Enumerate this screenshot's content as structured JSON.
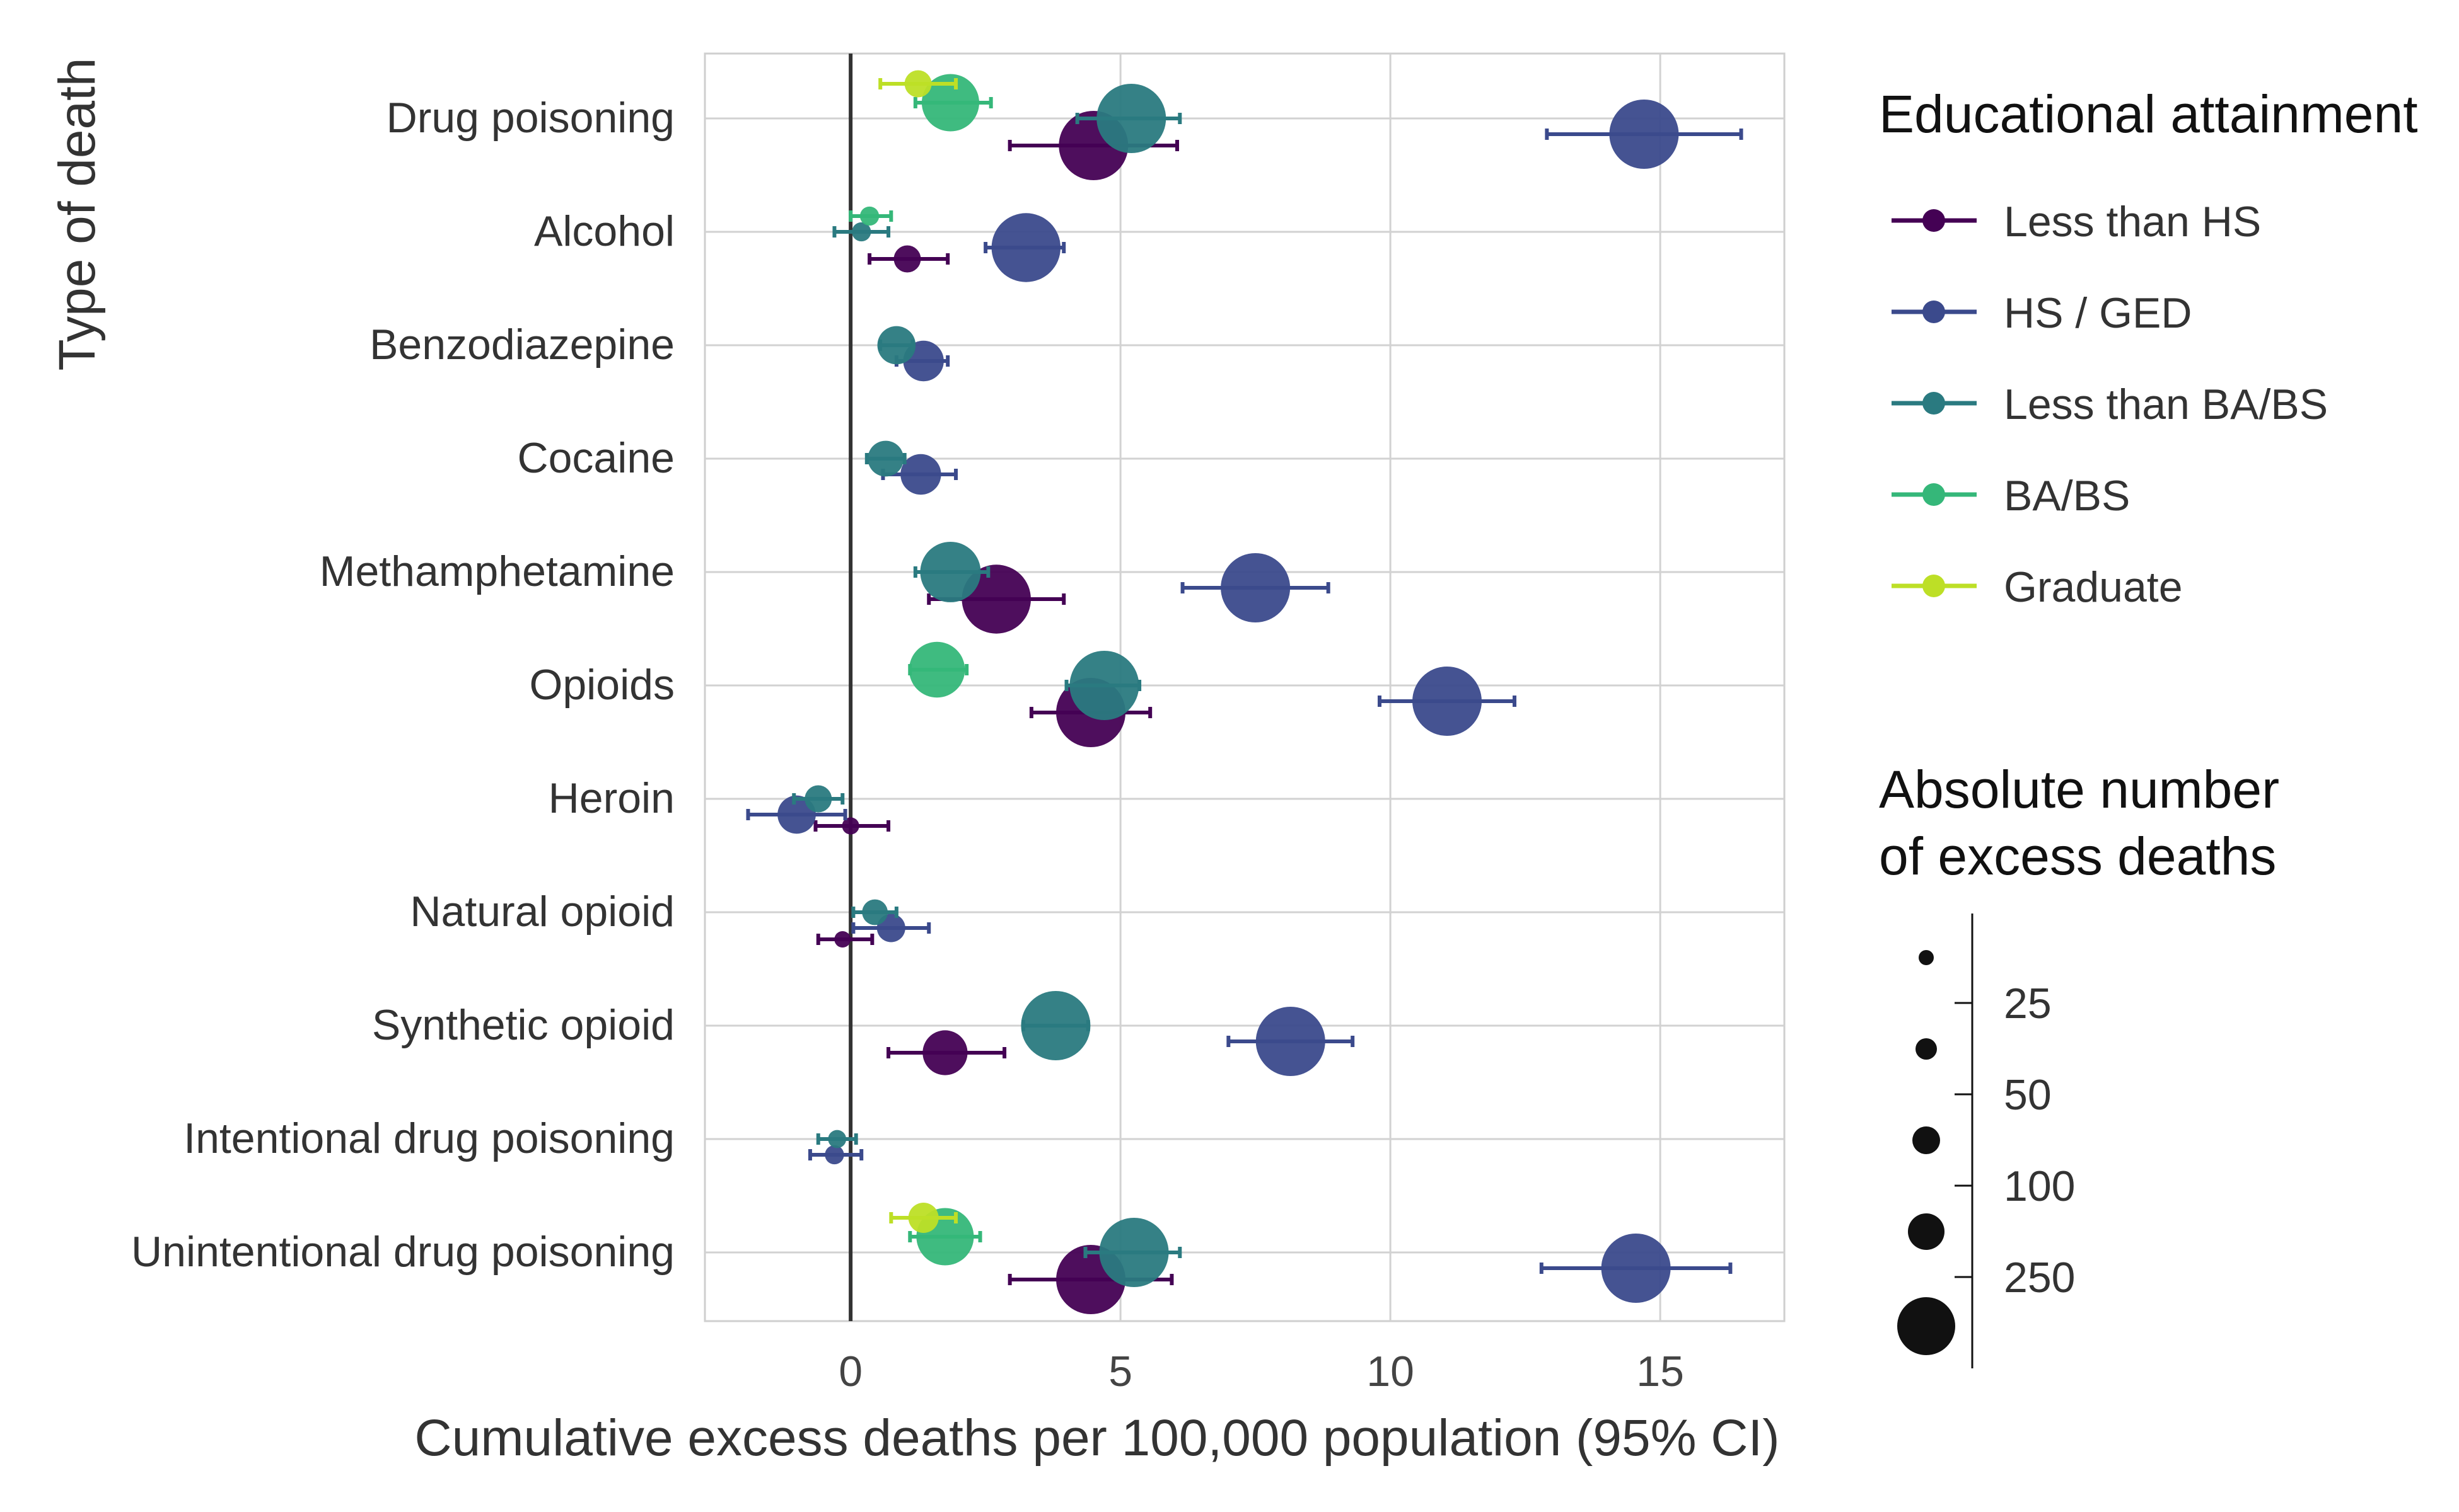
{
  "chart_data": {
    "type": "scatter",
    "title": "",
    "xlabel": "Cumulative excess deaths per 100,000 population (95% CI)",
    "ylabel": "Type of death",
    "xlim": [
      -2.7,
      17.3
    ],
    "xticks": [
      0,
      5,
      10,
      15
    ],
    "x_tick_labels": [
      "0",
      "5",
      "10",
      "15"
    ],
    "grid": true,
    "reference_line_x": 0,
    "categories": [
      "Drug poisoning",
      "Alcohol",
      "Benzodiazepine",
      "Cocaine",
      "Methamphetamine",
      "Opioids",
      "Heroin",
      "Natural opioid",
      "Synthetic opioid",
      "Intentional drug poisoning",
      "Unintentional drug poisoning"
    ],
    "legend": {
      "title": "Educational attainment",
      "placement": "right"
    },
    "size_legend": {
      "title_lines": [
        "Absolute number",
        "of excess deaths"
      ],
      "tick_labels": [
        "25",
        "50",
        "100",
        "250"
      ],
      "marker_labels": [
        "",
        "",
        "",
        "",
        ""
      ]
    },
    "series": [
      {
        "name": "Less than HS",
        "color": "#440154",
        "points": [
          {
            "category": "Drug poisoning",
            "x": 4.5,
            "low": 2.95,
            "high": 6.05,
            "n": 200
          },
          {
            "category": "Alcohol",
            "x": 1.05,
            "low": 0.35,
            "high": 1.8,
            "n": 20
          },
          {
            "category": "Methamphetamine",
            "x": 2.7,
            "low": 1.45,
            "high": 3.95,
            "n": 130
          },
          {
            "category": "Opioids",
            "x": 4.45,
            "low": 3.35,
            "high": 5.55,
            "n": 190
          },
          {
            "category": "Heroin",
            "x": 0.0,
            "low": -0.65,
            "high": 0.7,
            "n": 8
          },
          {
            "category": "Natural opioid",
            "x": -0.15,
            "low": -0.6,
            "high": 0.4,
            "n": 7
          },
          {
            "category": "Synthetic opioid",
            "x": 1.75,
            "low": 0.7,
            "high": 2.85,
            "n": 55
          },
          {
            "category": "Unintentional drug poisoning",
            "x": 4.45,
            "low": 2.95,
            "high": 5.95,
            "n": 195
          }
        ]
      },
      {
        "name": "HS / GED",
        "color": "#3b4a8c",
        "points": [
          {
            "category": "Drug poisoning",
            "x": 14.7,
            "low": 12.9,
            "high": 16.5,
            "n": 1000
          },
          {
            "category": "Alcohol",
            "x": 3.25,
            "low": 2.5,
            "high": 3.95,
            "n": 130
          },
          {
            "category": "Benzodiazepine",
            "x": 1.35,
            "low": 0.85,
            "high": 1.8,
            "n": 45
          },
          {
            "category": "Cocaine",
            "x": 1.3,
            "low": 0.6,
            "high": 1.95,
            "n": 45
          },
          {
            "category": "Methamphetamine",
            "x": 7.5,
            "low": 6.15,
            "high": 8.85,
            "n": 900
          },
          {
            "category": "Opioids",
            "x": 11.05,
            "low": 9.8,
            "high": 12.3,
            "n": 900
          },
          {
            "category": "Heroin",
            "x": -1.0,
            "low": -1.9,
            "high": -0.1,
            "n": 40
          },
          {
            "category": "Natural opioid",
            "x": 0.75,
            "low": 0.05,
            "high": 1.45,
            "n": 22
          },
          {
            "category": "Synthetic opioid",
            "x": 8.15,
            "low": 7.0,
            "high": 9.3,
            "n": 900
          },
          {
            "category": "Intentional drug poisoning",
            "x": -0.3,
            "low": -0.75,
            "high": 0.2,
            "n": 10
          },
          {
            "category": "Unintentional drug poisoning",
            "x": 14.55,
            "low": 12.8,
            "high": 16.3,
            "n": 1000
          }
        ]
      },
      {
        "name": "Less than BA/BS",
        "color": "#2a7a80",
        "points": [
          {
            "category": "Drug poisoning",
            "x": 5.2,
            "low": 4.2,
            "high": 6.1,
            "n": 1000
          },
          {
            "category": "Alcohol",
            "x": 0.2,
            "low": -0.3,
            "high": 0.7,
            "n": 10
          },
          {
            "category": "Benzodiazepine",
            "x": 0.85,
            "low": 0.55,
            "high": 1.15,
            "n": 40
          },
          {
            "category": "Cocaine",
            "x": 0.65,
            "low": 0.3,
            "high": 1.0,
            "n": 35
          },
          {
            "category": "Methamphetamine",
            "x": 1.85,
            "low": 1.2,
            "high": 2.55,
            "n": 100
          },
          {
            "category": "Opioids",
            "x": 4.7,
            "low": 4.0,
            "high": 5.35,
            "n": 1000
          },
          {
            "category": "Heroin",
            "x": -0.6,
            "low": -1.05,
            "high": -0.15,
            "n": 20
          },
          {
            "category": "Natural opioid",
            "x": 0.45,
            "low": 0.05,
            "high": 0.85,
            "n": 18
          },
          {
            "category": "Synthetic opioid",
            "x": 3.8,
            "low": 3.2,
            "high": 4.4,
            "n": 1000
          },
          {
            "category": "Intentional drug poisoning",
            "x": -0.25,
            "low": -0.6,
            "high": 0.1,
            "n": 9
          },
          {
            "category": "Unintentional drug poisoning",
            "x": 5.25,
            "low": 4.35,
            "high": 6.1,
            "n": 1000
          }
        ]
      },
      {
        "name": "BA/BS",
        "color": "#35b779",
        "points": [
          {
            "category": "Drug poisoning",
            "x": 1.85,
            "low": 1.2,
            "high": 2.6,
            "n": 90
          },
          {
            "category": "Alcohol",
            "x": 0.35,
            "low": 0.0,
            "high": 0.75,
            "n": 10
          },
          {
            "category": "Opioids",
            "x": 1.6,
            "low": 1.1,
            "high": 2.15,
            "n": 85
          },
          {
            "category": "Unintentional drug poisoning",
            "x": 1.75,
            "low": 1.1,
            "high": 2.4,
            "n": 90
          }
        ]
      },
      {
        "name": "Graduate",
        "color": "#bddf26",
        "points": [
          {
            "category": "Drug poisoning",
            "x": 1.25,
            "low": 0.55,
            "high": 1.95,
            "n": 20
          },
          {
            "category": "Unintentional drug poisoning",
            "x": 1.35,
            "low": 0.75,
            "high": 1.95,
            "n": 25
          }
        ]
      }
    ]
  }
}
